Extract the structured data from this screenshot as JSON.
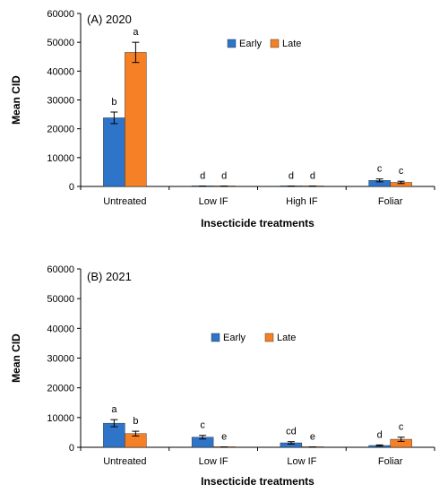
{
  "colors": {
    "early": "#2e75c9",
    "late": "#f58025",
    "axis": "#000000"
  },
  "chart_data": [
    {
      "type": "bar",
      "panel_label": "(A) 2020",
      "categories": [
        "Untreated",
        "Low IF",
        "High IF",
        "Foliar"
      ],
      "xlabel": "Insecticide treatments",
      "ylabel": "Mean CID",
      "ylim": [
        0,
        60000
      ],
      "yticks": [
        "0",
        "10000",
        "20000",
        "30000",
        "40000",
        "50000",
        "60000"
      ],
      "legend": "top-center",
      "grid": false,
      "series": [
        {
          "name": "Early",
          "values": [
            23800,
            100,
            100,
            2100
          ],
          "errors": [
            2000,
            50,
            50,
            500
          ],
          "letters": [
            "b",
            "d",
            "d",
            "c"
          ]
        },
        {
          "name": "Late",
          "values": [
            46500,
            100,
            100,
            1400
          ],
          "errors": [
            3500,
            50,
            50,
            400
          ],
          "letters": [
            "a",
            "d",
            "d",
            "c"
          ]
        }
      ]
    },
    {
      "type": "bar",
      "panel_label": "(B) 2021",
      "categories": [
        "Untreated",
        "Low IF",
        "Low IF",
        "Foliar"
      ],
      "xlabel": "Insecticide treatments",
      "ylabel": "Mean CID",
      "ylim": [
        0,
        60000
      ],
      "yticks": [
        "0",
        "10000",
        "20000",
        "30000",
        "40000",
        "50000",
        "60000"
      ],
      "legend": "center",
      "grid": false,
      "series": [
        {
          "name": "Early",
          "values": [
            8100,
            3400,
            1500,
            600
          ],
          "errors": [
            1200,
            600,
            400,
            200
          ],
          "letters": [
            "a",
            "c",
            "cd",
            "d"
          ]
        },
        {
          "name": "Late",
          "values": [
            4600,
            50,
            50,
            2700
          ],
          "errors": [
            800,
            30,
            30,
            700
          ],
          "letters": [
            "b",
            "e",
            "e",
            "c"
          ]
        }
      ]
    }
  ]
}
